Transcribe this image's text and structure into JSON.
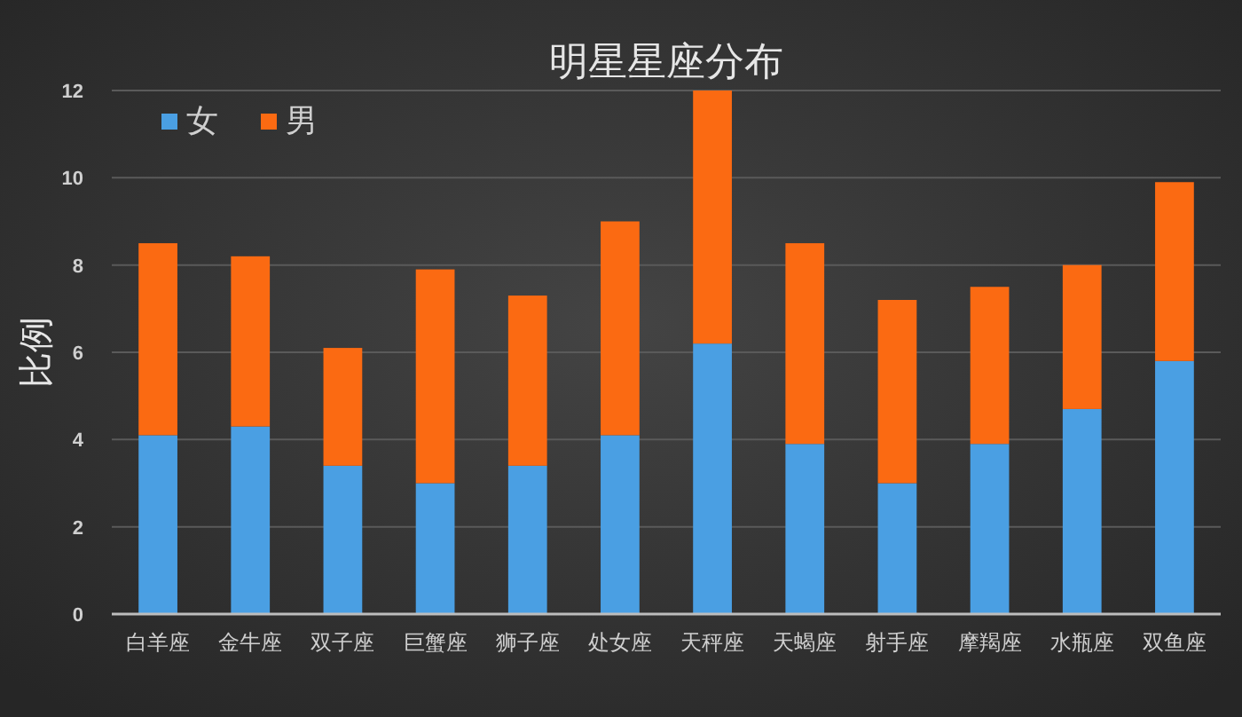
{
  "chart_data": {
    "type": "bar",
    "title": "明星星座分布",
    "ylabel": "比例",
    "categories": [
      "白羊座",
      "金牛座",
      "双子座",
      "巨蟹座",
      "狮子座",
      "处女座",
      "天秤座",
      "天蝎座",
      "射手座",
      "摩羯座",
      "水瓶座",
      "双鱼座"
    ],
    "stacked": true,
    "series": [
      {
        "name": "女",
        "color": "#4a9fe3",
        "values": [
          4.1,
          4.3,
          3.4,
          3.0,
          3.4,
          4.1,
          6.2,
          3.9,
          3.0,
          3.9,
          4.7,
          5.8
        ]
      },
      {
        "name": "男",
        "color": "#fb6a12",
        "values": [
          4.4,
          3.9,
          2.7,
          4.9,
          3.9,
          4.9,
          5.8,
          4.6,
          4.2,
          3.6,
          3.3,
          4.1
        ]
      }
    ],
    "ylim": [
      0,
      12
    ],
    "yticks": [
      0,
      2,
      4,
      6,
      8,
      10,
      12
    ],
    "grid": "y",
    "legend": "top left"
  }
}
